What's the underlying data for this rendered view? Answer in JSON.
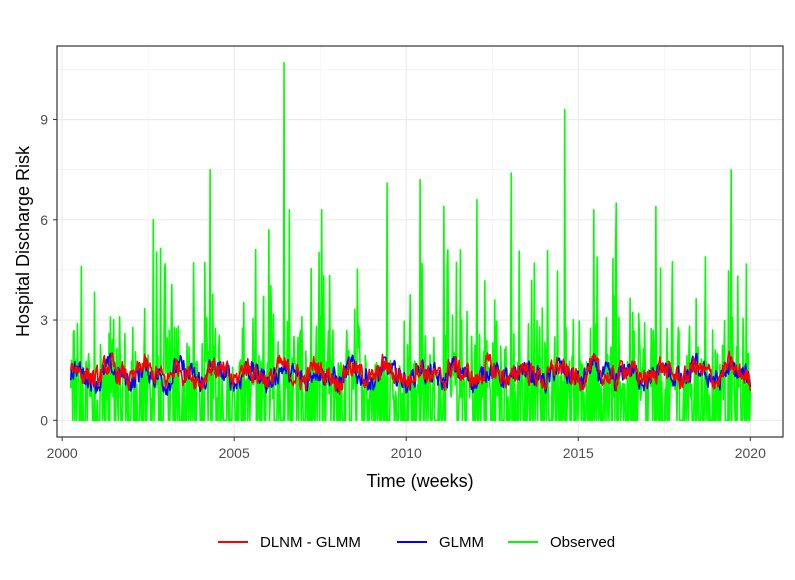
{
  "chart_data": {
    "type": "line",
    "title": "",
    "xlabel": "Time (weeks)",
    "ylabel": "Hospital Discharge Risk",
    "xlim": [
      1999.85,
      2020.95
    ],
    "ylim": [
      -0.5,
      11.2
    ],
    "x_ticks": [
      2000,
      2005,
      2010,
      2015,
      2020
    ],
    "x_tick_labels": [
      "2000",
      "2005",
      "2010",
      "2015",
      "2020"
    ],
    "y_ticks": [
      0,
      3,
      6,
      9
    ],
    "y_tick_labels": [
      "0",
      "3",
      "6",
      "9"
    ],
    "grid": true,
    "legend_position": "bottom",
    "series": [
      {
        "name": "Observed",
        "color": "#00FF00",
        "x_start": 2000.25,
        "x_end": 2020.0,
        "baseline_level": 1.4,
        "spikes": [
          [
            2000.55,
            4.6
          ],
          [
            2002.65,
            6.0
          ],
          [
            2004.3,
            7.5
          ],
          [
            2006.0,
            5.7
          ],
          [
            2006.45,
            10.7
          ],
          [
            2006.6,
            6.3
          ],
          [
            2007.55,
            6.3
          ],
          [
            2009.45,
            7.1
          ],
          [
            2010.4,
            7.2
          ],
          [
            2011.1,
            6.4
          ],
          [
            2012.05,
            6.6
          ],
          [
            2013.05,
            7.4
          ],
          [
            2014.6,
            9.3
          ],
          [
            2015.45,
            6.3
          ],
          [
            2016.1,
            6.5
          ],
          [
            2017.25,
            6.4
          ],
          [
            2019.45,
            7.5
          ],
          [
            2019.95,
            2.0
          ]
        ]
      },
      {
        "name": "GLMM",
        "color": "#0000FF",
        "x_start": 2000.25,
        "x_end": 2020.0,
        "mean": 1.35,
        "range": [
          0.6,
          2.0
        ]
      },
      {
        "name": "DLNM - GLMM",
        "color": "#FF0000",
        "x_start": 2000.25,
        "x_end": 2020.0,
        "mean": 1.4,
        "range": [
          0.5,
          2.1
        ]
      }
    ],
    "legend": [
      {
        "label": "DLNM - GLMM",
        "color": "#FF0000"
      },
      {
        "label": "GLMM",
        "color": "#0000FF"
      },
      {
        "label": "Observed",
        "color": "#00FF00"
      }
    ]
  }
}
